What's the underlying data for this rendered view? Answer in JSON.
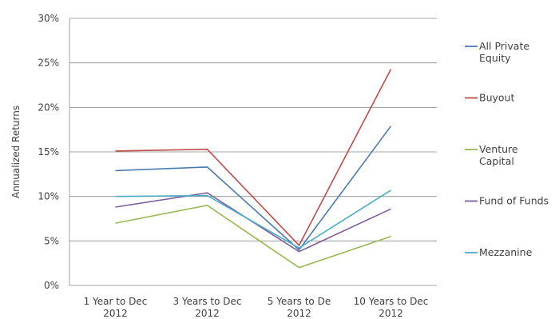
{
  "chart_data": {
    "type": "line",
    "title": "",
    "xlabel": "",
    "ylabel": "Annualized Returns",
    "ylim": [
      0,
      30
    ],
    "y_ticks": [
      "0%",
      "5%",
      "10%",
      "15%",
      "20%",
      "25%",
      "30%"
    ],
    "categories": [
      [
        "1 Year to Dec",
        "2012"
      ],
      [
        "3 Years to Dec",
        "2012"
      ],
      [
        "5 Years to De",
        "2012"
      ],
      [
        "10 Years to Dec",
        "2012"
      ]
    ],
    "grid": true,
    "legend_position": "right",
    "series": [
      {
        "name": [
          "All Private",
          "Equity"
        ],
        "color": "#4a7ab0",
        "values": [
          12.9,
          13.3,
          4.0,
          17.9
        ]
      },
      {
        "name": [
          "Buyout"
        ],
        "color": "#be4b48",
        "values": [
          15.1,
          15.3,
          4.5,
          24.3
        ]
      },
      {
        "name": [
          "Venture",
          "Capital"
        ],
        "color": "#98b954",
        "values": [
          7.0,
          9.0,
          2.0,
          5.5
        ]
      },
      {
        "name": [
          "Fund of Funds"
        ],
        "color": "#7d5fa0",
        "values": [
          8.8,
          10.4,
          3.8,
          8.6
        ]
      },
      {
        "name": [
          "Mezzanine"
        ],
        "color": "#4bacc6",
        "values": [
          10.0,
          10.1,
          4.2,
          10.7
        ]
      }
    ]
  }
}
